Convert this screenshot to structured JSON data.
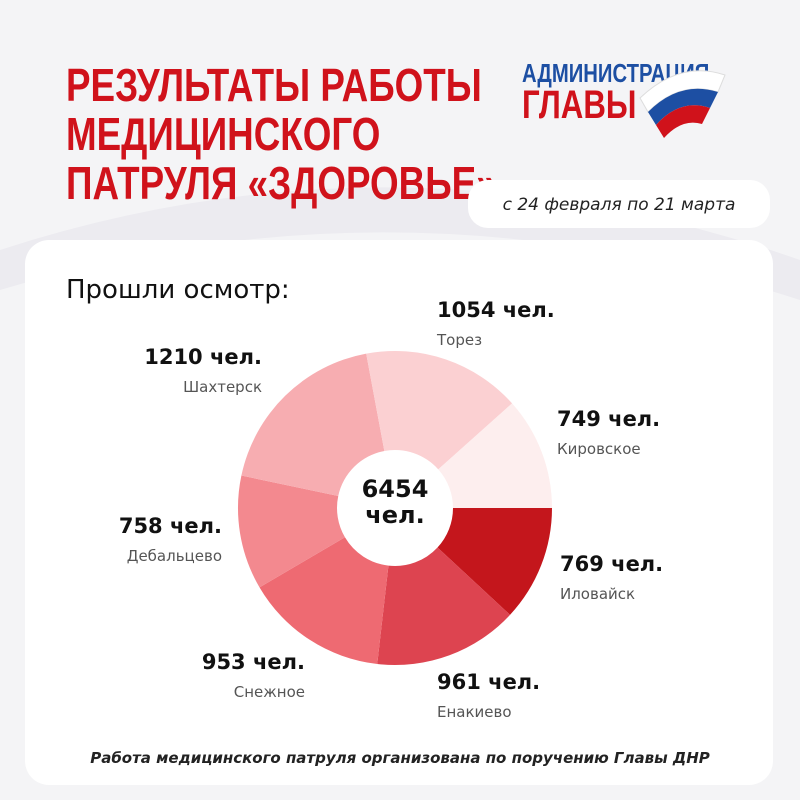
{
  "header": {
    "title_lines": [
      "РЕЗУЛЬТАТЫ РАБОТЫ",
      "МЕДИЦИНСКОГО",
      "ПАТРУЛЯ «ЗДОРОВЬЕ»"
    ],
    "logo_lines": [
      "АДМИНИСТРАЦИЯ",
      "ГЛАВЫ"
    ],
    "period": "с 24 февраля по 21 марта"
  },
  "chart_data": {
    "type": "donut",
    "title": "Прошли осмотр:",
    "center_label": "6454 чел.",
    "categories": [
      "Иловайск",
      "Енакиево",
      "Снежное",
      "Дебальцево",
      "Шахтерск",
      "Торез",
      "Кировское"
    ],
    "values": [
      769,
      961,
      953,
      758,
      1210,
      1054,
      749
    ],
    "value_labels": [
      "769 чел.",
      "961 чел.",
      "953 чел.",
      "758 чел.",
      "1210 чел.",
      "1054 чел.",
      "749 чел."
    ],
    "colors": [
      "#c4161c",
      "#dd4450",
      "#ee6a72",
      "#f3898f",
      "#f7adb1",
      "#fbd0d2",
      "#fdeeee"
    ]
  },
  "footer": "Работа медицинского патруля организована по поручению Главы ДНР"
}
